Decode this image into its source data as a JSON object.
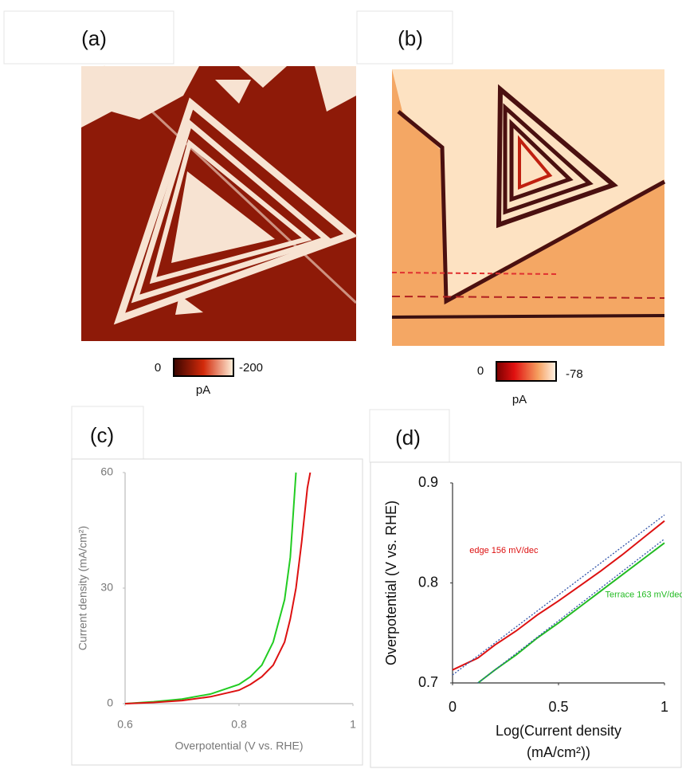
{
  "panels": [
    {
      "label": "(a)",
      "colorbar": {
        "ticks": [
          0,
          -200
        ],
        "unit": "pA"
      }
    },
    {
      "label": "(b)",
      "colorbar": {
        "ticks": [
          0,
          -78
        ],
        "unit": "pA"
      }
    },
    {
      "label": "(c)"
    },
    {
      "label": "(d)"
    }
  ],
  "chart_data": [
    {
      "type": "line",
      "xlabel": "Overpotential (V vs. RHE)",
      "ylabel": "Current density (mA/cm²)",
      "x": [
        0.6,
        0.65,
        0.7,
        0.75,
        0.8,
        0.82,
        0.84,
        0.86,
        0.88,
        0.89,
        0.9,
        0.91,
        0.92,
        0.925
      ],
      "series": [
        {
          "color": "#22cc22",
          "values": [
            0,
            0.5,
            1.2,
            2.5,
            5,
            7,
            10,
            16,
            27,
            38,
            60,
            null,
            null,
            null
          ]
        },
        {
          "color": "#dd1111",
          "values": [
            0,
            0.3,
            0.8,
            1.8,
            3.5,
            5,
            7,
            10,
            16,
            22,
            30,
            42,
            56,
            60
          ]
        }
      ],
      "xlim": [
        0.6,
        1
      ],
      "xticks": [
        0.6,
        0.8,
        1
      ],
      "ylim": [
        0,
        60
      ],
      "yticks": [
        0,
        30,
        60
      ]
    },
    {
      "type": "line",
      "xlabel": [
        "Log(Current density",
        "(mA/cm²))"
      ],
      "ylabel": "Overpotential (V vs. RHE)",
      "x": [
        0,
        0.12,
        0.2,
        0.3,
        0.4,
        0.5,
        0.6,
        0.7,
        0.8,
        0.9,
        1
      ],
      "series": [
        {
          "color": "#dd1111",
          "values": [
            0.713,
            0.725,
            0.738,
            0.752,
            0.768,
            0.782,
            0.797,
            0.812,
            0.828,
            0.845,
            0.862
          ]
        },
        {
          "color": "#22bb22",
          "values": [
            null,
            0.7,
            0.713,
            0.728,
            0.745,
            0.76,
            0.776,
            0.792,
            0.808,
            0.824,
            0.84
          ]
        },
        {
          "color": "#3355aa",
          "style": "dotted",
          "x": [
            0,
            1
          ],
          "values": [
            0.708,
            0.868
          ]
        },
        {
          "color": "#3355aa",
          "style": "dotted",
          "x": [
            0.12,
            1
          ],
          "values": [
            0.7,
            0.844
          ]
        }
      ],
      "annotations": [
        {
          "text": "edge 156 mV/dec",
          "color": "#dd1111",
          "x": 0.08,
          "y": 0.832
        },
        {
          "text": "Terrace 163 mV/dec",
          "color": "#22bb22",
          "x": 0.72,
          "y": 0.788
        }
      ],
      "xlim": [
        0,
        1
      ],
      "xticks": [
        0,
        0.5,
        1
      ],
      "ylim": [
        0.7,
        0.9
      ],
      "yticks": [
        0.7,
        0.8,
        0.9
      ]
    }
  ]
}
